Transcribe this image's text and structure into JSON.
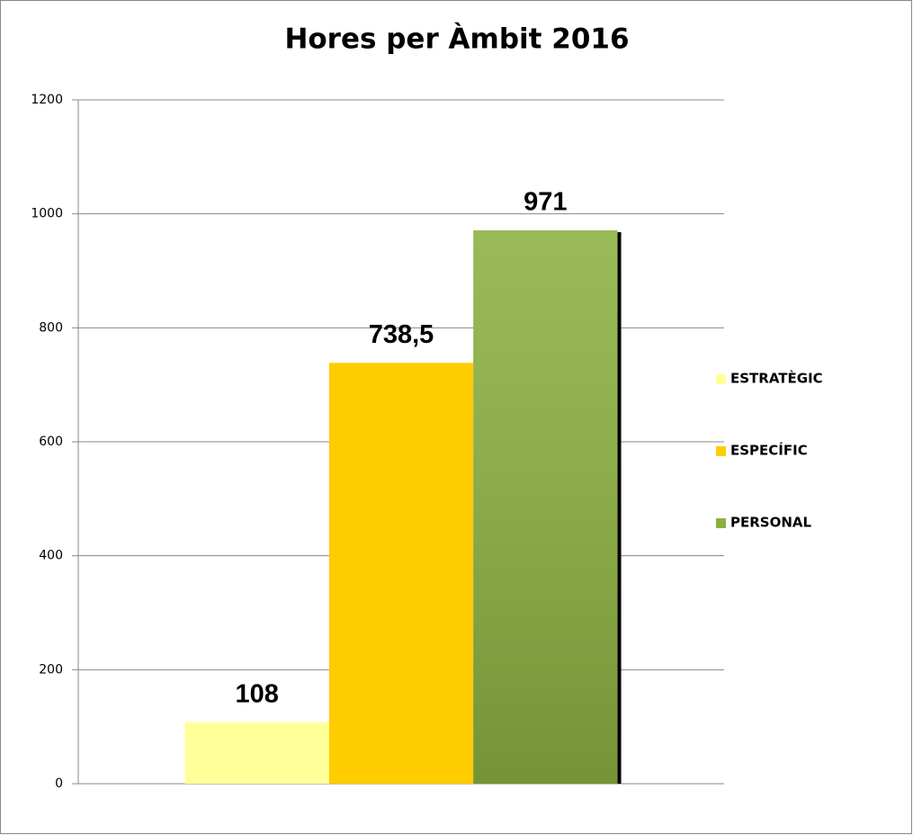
{
  "chart_data": {
    "type": "bar",
    "title": "Hores per Àmbit 2016",
    "categories": [
      null
    ],
    "series": [
      {
        "name": "ESTRATÈGIC",
        "color": "#ffff99",
        "values": [
          108
        ],
        "value_labels": [
          "108"
        ]
      },
      {
        "name": "ESPECÍFIC",
        "color": "#ffcc00",
        "values": [
          738.5
        ],
        "value_labels": [
          "738,5"
        ]
      },
      {
        "name": "PERSONAL",
        "color": "#8cb040",
        "gradient": true,
        "values": [
          971
        ],
        "value_labels": [
          "971"
        ]
      }
    ],
    "ylim": [
      0,
      1200
    ],
    "yticks": [
      0,
      200,
      400,
      600,
      800,
      1000,
      1200
    ],
    "grid": true,
    "legend": "right"
  }
}
